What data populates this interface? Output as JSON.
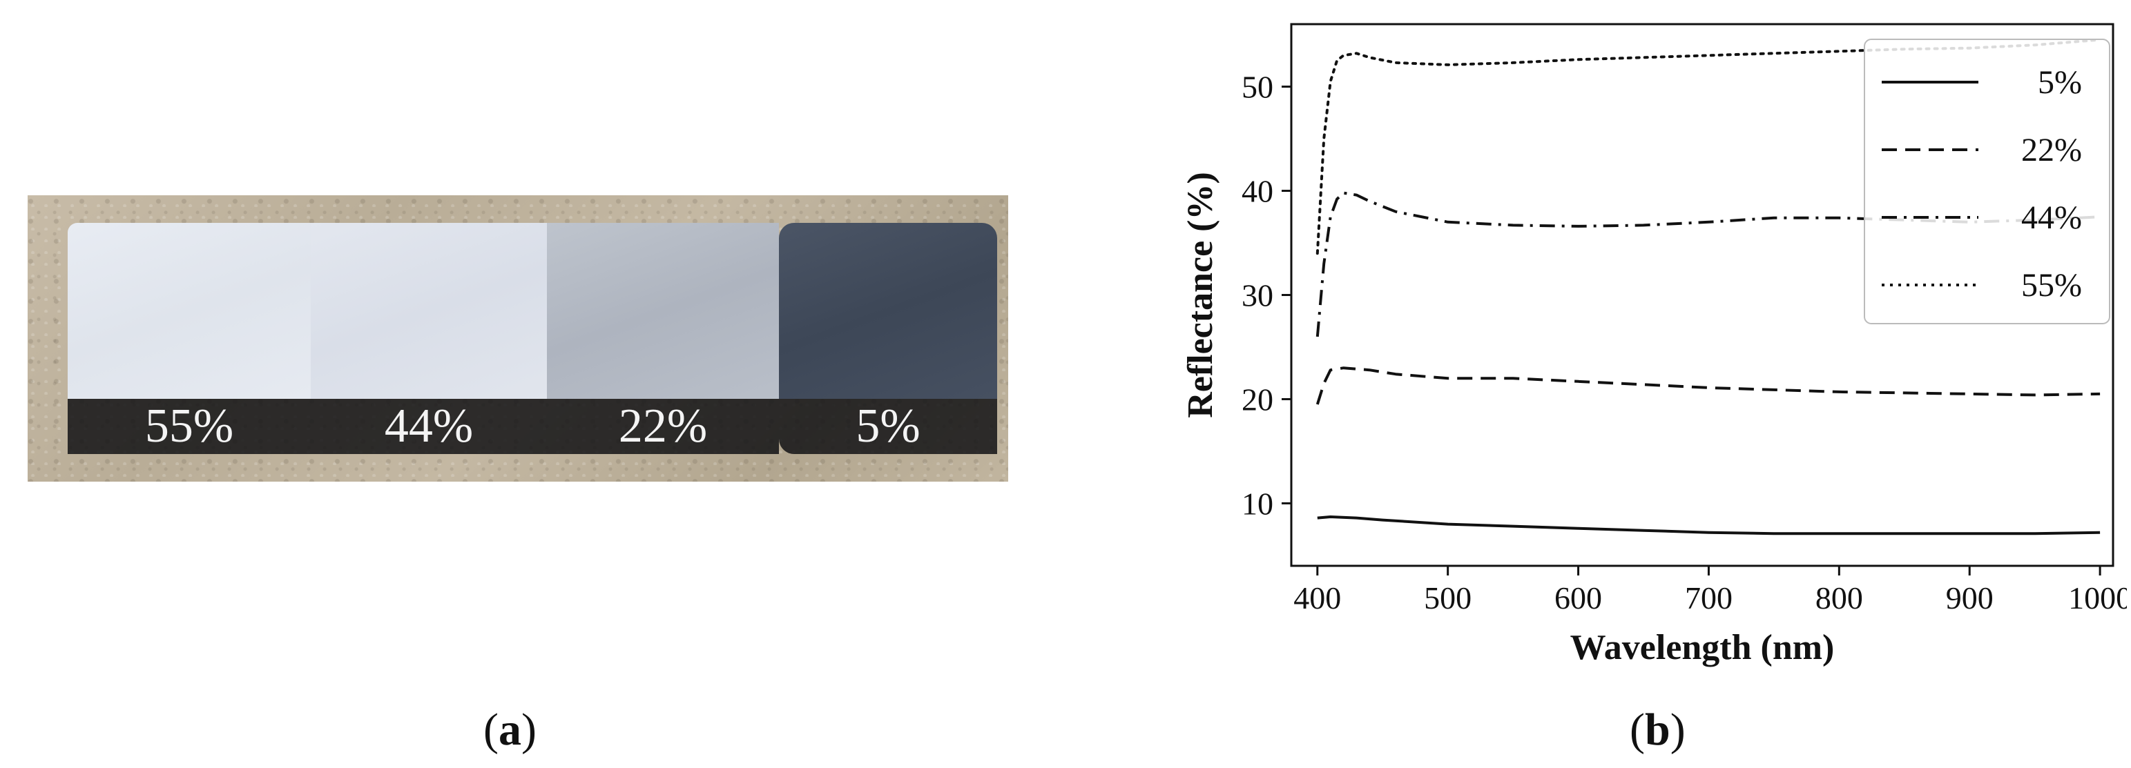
{
  "panel_a": {
    "caption_letter": "a",
    "panels": [
      {
        "label": "55%",
        "color": "#e3e7ef"
      },
      {
        "label": "44%",
        "color": "#dde2ea"
      },
      {
        "label": "22%",
        "color": "#b4bac4"
      },
      {
        "label": "5%",
        "color": "#434d5e"
      }
    ]
  },
  "panel_b": {
    "caption_letter": "b"
  },
  "chart_data": {
    "type": "line",
    "title": "",
    "xlabel": "Wavelength (nm)",
    "ylabel": "Reflectance (%)",
    "xlim": [
      380,
      1010
    ],
    "ylim": [
      4,
      56
    ],
    "xticks": [
      400,
      500,
      600,
      700,
      800,
      900,
      1000
    ],
    "yticks": [
      10,
      20,
      30,
      40,
      50
    ],
    "grid": false,
    "legend_position": "top-right",
    "series": [
      {
        "name": "5%",
        "style": "solid",
        "color": "#111111",
        "x": [
          400,
          410,
          430,
          450,
          500,
          550,
          600,
          650,
          700,
          750,
          800,
          850,
          900,
          950,
          1000
        ],
        "y": [
          8.6,
          8.7,
          8.6,
          8.4,
          8.0,
          7.8,
          7.6,
          7.4,
          7.2,
          7.1,
          7.1,
          7.1,
          7.1,
          7.1,
          7.2
        ]
      },
      {
        "name": "22%",
        "style": "dashed",
        "color": "#111111",
        "x": [
          400,
          405,
          410,
          420,
          440,
          460,
          500,
          550,
          600,
          650,
          700,
          750,
          800,
          850,
          900,
          950,
          1000
        ],
        "y": [
          19.5,
          21.5,
          22.8,
          23.0,
          22.8,
          22.4,
          22.0,
          22.0,
          21.7,
          21.4,
          21.1,
          20.9,
          20.7,
          20.6,
          20.5,
          20.4,
          20.5
        ]
      },
      {
        "name": "44%",
        "style": "dashdot",
        "color": "#111111",
        "x": [
          400,
          405,
          410,
          415,
          420,
          430,
          440,
          460,
          500,
          550,
          600,
          650,
          700,
          750,
          800,
          850,
          900,
          950,
          1000
        ],
        "y": [
          26.0,
          33.0,
          37.5,
          39.2,
          39.8,
          39.6,
          39.0,
          38.0,
          37.0,
          36.7,
          36.6,
          36.7,
          37.0,
          37.4,
          37.4,
          37.2,
          37.0,
          37.2,
          37.5
        ]
      },
      {
        "name": "55%",
        "style": "dotted",
        "color": "#111111",
        "x": [
          400,
          405,
          410,
          415,
          420,
          430,
          440,
          460,
          500,
          550,
          600,
          650,
          700,
          750,
          800,
          850,
          900,
          950,
          1000
        ],
        "y": [
          34.0,
          45.0,
          50.5,
          52.5,
          53.0,
          53.2,
          52.8,
          52.3,
          52.1,
          52.3,
          52.6,
          52.8,
          53.0,
          53.2,
          53.4,
          53.6,
          53.7,
          54.0,
          54.5
        ]
      }
    ]
  }
}
